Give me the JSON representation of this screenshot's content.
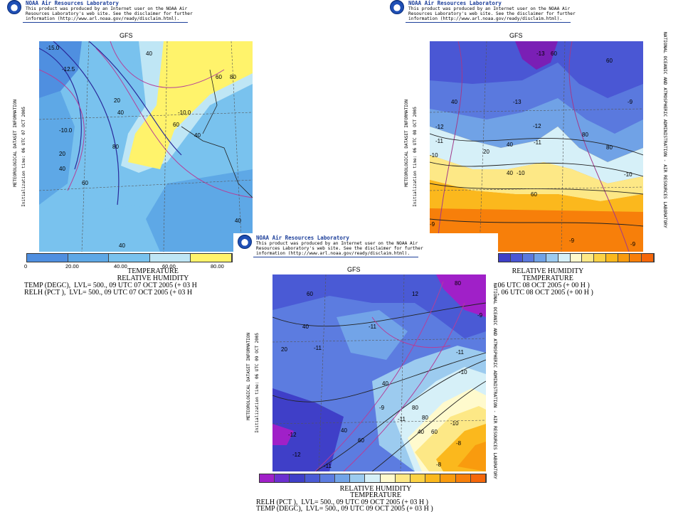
{
  "header": {
    "title": "NOAA Air Resources Laboratory",
    "line1": "This product was produced by an Internet user on the NOAA Air",
    "line2": "Resources Laboratory's web site.  See the disclaimer for further",
    "line3": "information (http://www.arl.noaa.gov/ready/disclaim.html)."
  },
  "model_label": "GFS",
  "side_label_left": "METEOROLOGICAL DATASET INFORMATION",
  "side_label_right": "NATIONAL OCEANIC AND ATMOSPHERIC ADMINISTRATION - AIR RESOURCES LABORATORY",
  "panels": {
    "left": {
      "init_time": "Initialization time: 06 UTC 07 OCT 2005",
      "colorbar_ticks": [
        "0",
        "20.00",
        "40.00",
        "60.00",
        "80.00"
      ],
      "legend_title1": "TEMPERATURE",
      "legend_title2": "RELATIVE HUMIDITY",
      "legend_line1": "TEMP (DEGC),  LVL= 500., 09 UTC 07 OCT 2005 (+ 03 H",
      "legend_line2": "RELH (PCT ),  LVL= 500., 09 UTC 07 OCT 2005 (+ 03 H",
      "contour_labels": [
        "-15.0",
        "-12.5",
        "-10.0",
        "-10.0",
        "20",
        "40",
        "60",
        "80",
        "40",
        "60",
        "80",
        "20",
        "40",
        "40",
        "40",
        "60",
        "40"
      ]
    },
    "right": {
      "init_time": "Initialization time: 06 UTC 08 OCT 2005",
      "legend_title1": "RELATIVE HUMIDITY",
      "legend_title2": "TEMPERATURE",
      "legend_line1": "., 06 UTC 08 OCT 2005 (+ 00 H )",
      "legend_line2": "0., 06 UTC 08 OCT 2005 (+ 00 H )",
      "contour_labels": [
        "-13",
        "60",
        "40",
        "-13",
        "-12",
        "-12",
        "-11",
        "-11",
        "40",
        "20",
        "-10",
        "40",
        "-10",
        "60",
        "80",
        "-10",
        "-9",
        "-9",
        "-9",
        "80",
        "60",
        "-9"
      ]
    },
    "bottom": {
      "init_time": "Initialization time: 06 UTC 09 OCT 2005",
      "legend_title1": "RELATIVE HUMIDITY",
      "legend_title2": "TEMPERATURE",
      "legend_line1": "RELH (PCT ),  LVL= 500., 09 UTC 09 OCT 2005 (+ 03 H )",
      "legend_line2": "TEMP (DEGC),  LVL= 500., 09 UTC 09 OCT 2005 (+ 03 H )",
      "contour_labels": [
        "60",
        "12",
        "40",
        "-11",
        "80",
        "20",
        "-11",
        "40",
        "-10",
        "-11",
        "-12",
        "40",
        "60",
        "80",
        "-9",
        "80",
        "40",
        "60",
        "-11",
        "-10",
        "-8",
        "-8",
        "-11",
        "-12",
        "-9"
      ]
    }
  },
  "colors": {
    "header_blue": "#1d3f9a",
    "rh_scale": [
      "#4f8fe0",
      "#5ea8e6",
      "#79c2ee",
      "#bfe6f5",
      "#fff36b"
    ],
    "rt_scale": [
      "#3e3fc7",
      "#4a57d4",
      "#5a79de",
      "#70a2e6",
      "#9ccbef",
      "#d6f0f8",
      "#fffacd",
      "#fde886",
      "#fcd245",
      "#fbb81d",
      "#f99b0e",
      "#f77f0a",
      "#f5670a"
    ],
    "bt_scale": [
      "#a020c8",
      "#6b2fd0",
      "#3f3fc8",
      "#4a5ad5",
      "#5c7ce0",
      "#72a4e8",
      "#9ccbef",
      "#d6f0f8",
      "#fffacd",
      "#fde886",
      "#fcd245",
      "#fbb81d",
      "#f99b0e",
      "#f77f0a",
      "#f5670a"
    ]
  }
}
